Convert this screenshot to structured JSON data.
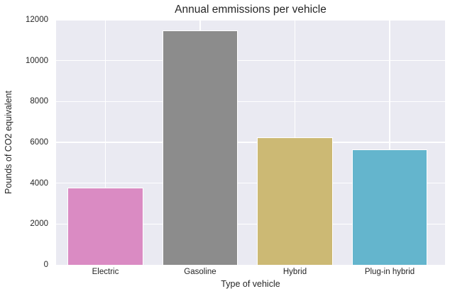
{
  "chart_data": {
    "type": "bar",
    "title": "Annual emmissions per vehicle",
    "xlabel": "Type of vehicle",
    "ylabel": "Pounds of CO2 equivalent",
    "categories": [
      "Electric",
      "Gasoline",
      "Hybrid",
      "Plug-in hybrid"
    ],
    "values": [
      3780,
      11470,
      6260,
      5660
    ],
    "bar_colors": [
      "#da8bc3",
      "#8c8c8c",
      "#ccb974",
      "#64b5cd"
    ],
    "ylim": [
      0,
      12000
    ],
    "yticks": [
      0,
      2000,
      4000,
      6000,
      8000,
      10000,
      12000
    ],
    "grid": true,
    "legend": "none",
    "plot_background": "#eaeaf2",
    "gridline_color": "#ffffff",
    "text_color": "#262626"
  }
}
